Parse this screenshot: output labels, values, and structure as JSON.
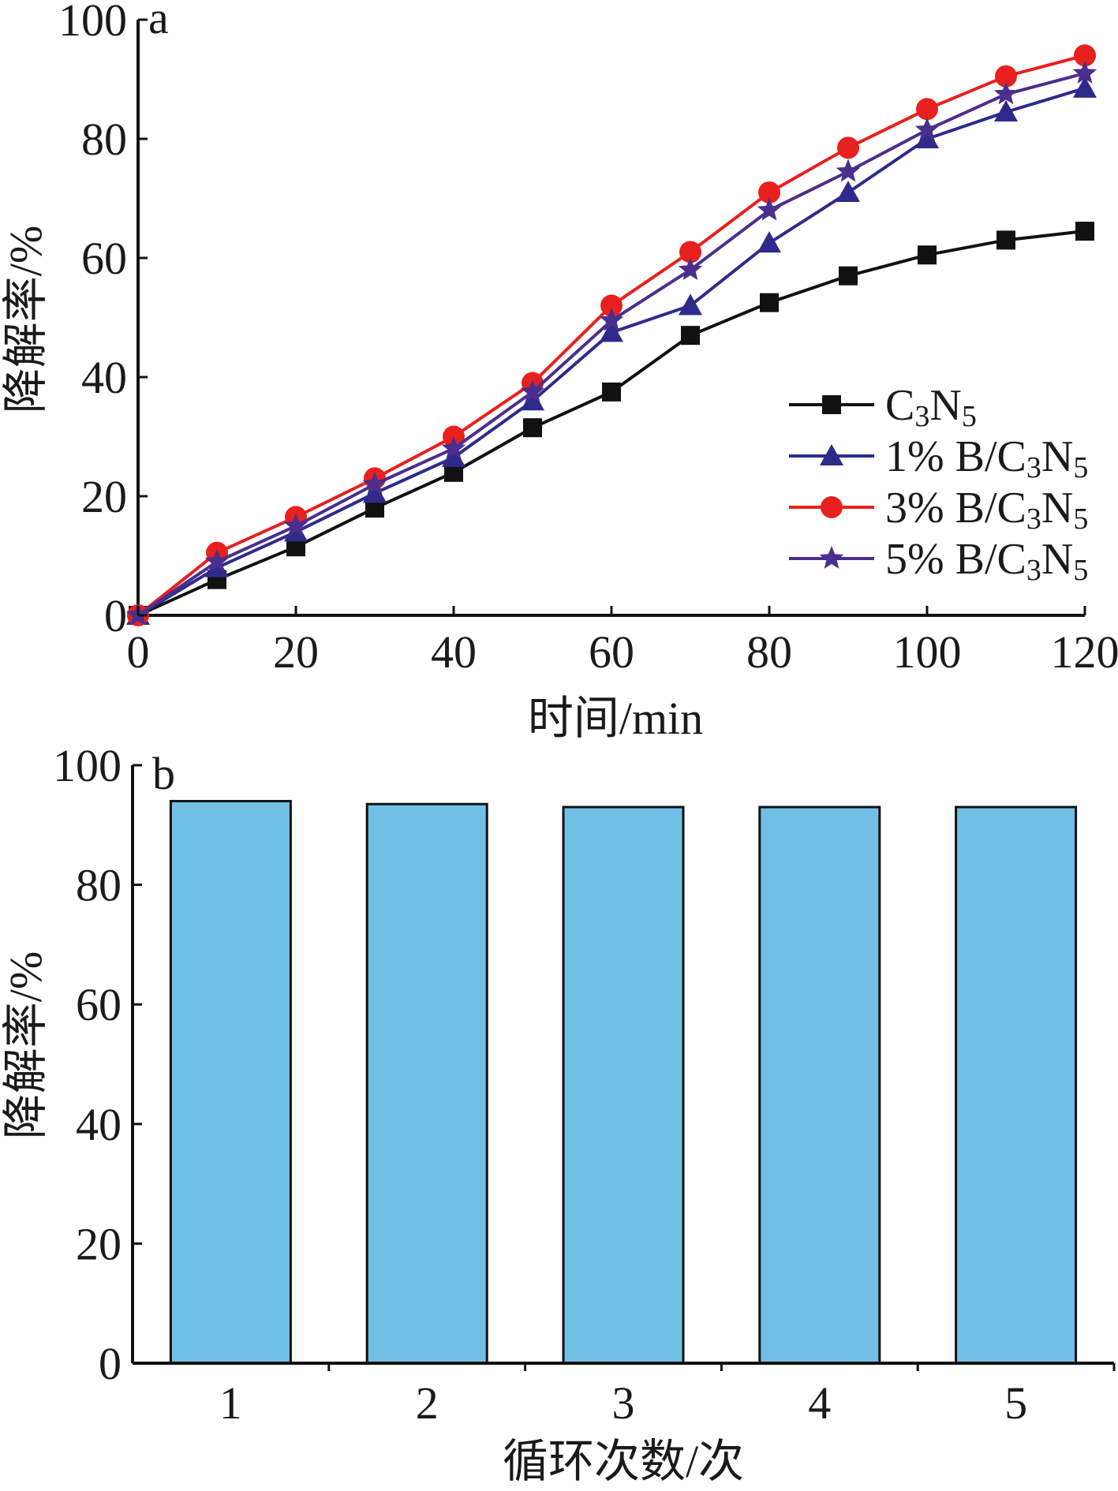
{
  "chart_data": [
    {
      "type": "line",
      "panel_label": "a",
      "xlabel": "时间/min",
      "ylabel": "降解率/%",
      "xlim": [
        0,
        120
      ],
      "ylim": [
        0,
        100
      ],
      "xticks": [
        "0",
        "20",
        "40",
        "60",
        "80",
        "100",
        "120"
      ],
      "yticks": [
        "0",
        "20",
        "40",
        "60",
        "80",
        "100"
      ],
      "grid": false,
      "legend_position": "lower-right",
      "x": [
        0,
        10,
        20,
        30,
        40,
        50,
        60,
        70,
        80,
        90,
        100,
        110,
        120
      ],
      "series": [
        {
          "name_main": "C",
          "name_sub1": "3",
          "name_mid": "N",
          "name_sub2": "5",
          "marker": "square",
          "color": "#111111",
          "values": [
            0,
            6,
            11.5,
            18,
            24,
            31.5,
            37.5,
            47,
            52.5,
            57,
            60.5,
            63,
            64.5
          ]
        },
        {
          "name_main": "1% B/C",
          "name_sub1": "3",
          "name_mid": "N",
          "name_sub2": "5",
          "marker": "triangle",
          "color": "#2e2a8c",
          "values": [
            0,
            8,
            14,
            20.5,
            26.5,
            36,
            47.5,
            52,
            62.5,
            71,
            80,
            84.5,
            88.5
          ]
        },
        {
          "name_main": "3% B/C",
          "name_sub1": "3",
          "name_mid": "N",
          "name_sub2": "5",
          "marker": "circle",
          "color": "#e8201e",
          "values": [
            0,
            10.5,
            16.5,
            23,
            30,
            39,
            52,
            61,
            71,
            78.5,
            85,
            90.5,
            94
          ]
        },
        {
          "name_main": "5% B/C",
          "name_sub1": "3",
          "name_mid": "N",
          "name_sub2": "5",
          "marker": "star",
          "color": "#4a2f8e",
          "values": [
            0,
            9,
            15,
            22,
            28,
            37.5,
            49.5,
            58,
            68,
            74.5,
            81.5,
            87.5,
            91
          ]
        }
      ]
    },
    {
      "type": "bar",
      "panel_label": "b",
      "xlabel": "循环次数/次",
      "ylabel": "降解率/%",
      "ylim": [
        0,
        100
      ],
      "yticks": [
        "0",
        "20",
        "40",
        "60",
        "80",
        "100"
      ],
      "grid": false,
      "categories": [
        "1",
        "2",
        "3",
        "4",
        "5"
      ],
      "values": [
        94,
        93.5,
        93,
        93,
        93
      ],
      "bar_color": "#70c0e6"
    }
  ]
}
